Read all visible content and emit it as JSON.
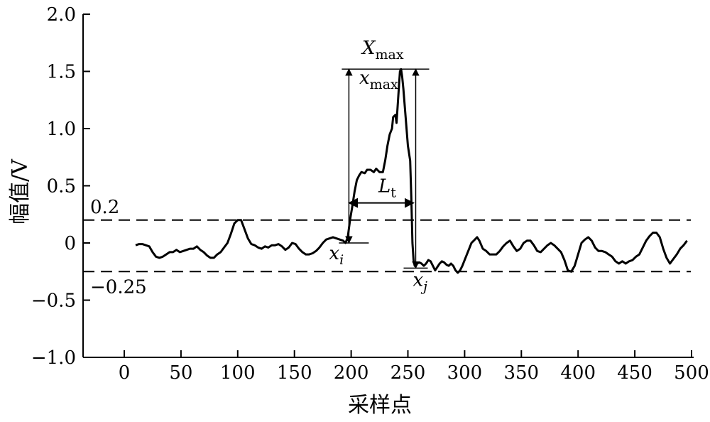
{
  "chart_data": {
    "type": "line",
    "xlabel": "采样点",
    "ylabel": "幅值/V",
    "xlim": [
      -35,
      500
    ],
    "ylim": [
      -1.0,
      2.0
    ],
    "x_ticks": [
      0,
      50,
      100,
      150,
      200,
      250,
      300,
      350,
      400,
      450,
      500
    ],
    "x_tick_labels": [
      "0",
      "50",
      "100",
      "150",
      "200",
      "250",
      "300",
      "350",
      "400",
      "450",
      "500"
    ],
    "y_ticks": [
      2.0,
      1.5,
      1.0,
      0.5,
      0,
      -0.5,
      -1.0
    ],
    "y_tick_labels": [
      "2.0",
      "1.5",
      "1.0",
      "0.5",
      "0",
      "−0.5",
      "−1.0"
    ],
    "thresholds": [
      {
        "value": 0.2,
        "label": "0.2",
        "style": "dashed"
      },
      {
        "value": -0.25,
        "label": "−0.25",
        "style": "dashed"
      }
    ],
    "series": [
      {
        "color": "#000000",
        "points": [
          [
            10,
            -0.02
          ],
          [
            13,
            -0.01
          ],
          [
            16,
            -0.01
          ],
          [
            19,
            -0.02
          ],
          [
            22,
            -0.03
          ],
          [
            25,
            -0.08
          ],
          [
            28,
            -0.12
          ],
          [
            31,
            -0.13
          ],
          [
            34,
            -0.12
          ],
          [
            37,
            -0.1
          ],
          [
            40,
            -0.08
          ],
          [
            43,
            -0.08
          ],
          [
            46,
            -0.06
          ],
          [
            49,
            -0.08
          ],
          [
            52,
            -0.07
          ],
          [
            55,
            -0.06
          ],
          [
            58,
            -0.05
          ],
          [
            61,
            -0.05
          ],
          [
            64,
            -0.03
          ],
          [
            67,
            -0.06
          ],
          [
            70,
            -0.08
          ],
          [
            73,
            -0.11
          ],
          [
            76,
            -0.13
          ],
          [
            79,
            -0.13
          ],
          [
            82,
            -0.1
          ],
          [
            85,
            -0.08
          ],
          [
            88,
            -0.04
          ],
          [
            91,
            0.0
          ],
          [
            94,
            0.08
          ],
          [
            97,
            0.17
          ],
          [
            100,
            0.2
          ],
          [
            103,
            0.2
          ],
          [
            106,
            0.12
          ],
          [
            109,
            0.04
          ],
          [
            112,
            -0.01
          ],
          [
            115,
            -0.02
          ],
          [
            118,
            -0.04
          ],
          [
            121,
            -0.05
          ],
          [
            124,
            -0.03
          ],
          [
            127,
            -0.04
          ],
          [
            130,
            -0.02
          ],
          [
            133,
            -0.02
          ],
          [
            136,
            -0.01
          ],
          [
            139,
            -0.03
          ],
          [
            142,
            -0.06
          ],
          [
            145,
            -0.04
          ],
          [
            148,
            0.0
          ],
          [
            151,
            -0.01
          ],
          [
            154,
            -0.05
          ],
          [
            157,
            -0.08
          ],
          [
            160,
            -0.1
          ],
          [
            163,
            -0.1
          ],
          [
            166,
            -0.09
          ],
          [
            169,
            -0.07
          ],
          [
            172,
            -0.04
          ],
          [
            175,
            0.0
          ],
          [
            178,
            0.03
          ],
          [
            181,
            0.04
          ],
          [
            184,
            0.05
          ],
          [
            187,
            0.04
          ],
          [
            190,
            0.03
          ],
          [
            193,
            0.02
          ],
          [
            195,
            0.0
          ],
          [
            197,
            0.05
          ],
          [
            199,
            0.2
          ],
          [
            201,
            0.32
          ],
          [
            203,
            0.45
          ],
          [
            205,
            0.55
          ],
          [
            207,
            0.59
          ],
          [
            209,
            0.62
          ],
          [
            212,
            0.61
          ],
          [
            214,
            0.64
          ],
          [
            217,
            0.64
          ],
          [
            220,
            0.62
          ],
          [
            222,
            0.65
          ],
          [
            225,
            0.62
          ],
          [
            228,
            0.62
          ],
          [
            230,
            0.72
          ],
          [
            232,
            0.85
          ],
          [
            234,
            0.95
          ],
          [
            236,
            1.0
          ],
          [
            237,
            1.1
          ],
          [
            239,
            1.12
          ],
          [
            240,
            1.05
          ],
          [
            241,
            1.2
          ],
          [
            242,
            1.35
          ],
          [
            243,
            1.5
          ],
          [
            244,
            1.52
          ],
          [
            245,
            1.45
          ],
          [
            246,
            1.35
          ],
          [
            248,
            1.1
          ],
          [
            250,
            0.85
          ],
          [
            252,
            0.72
          ],
          [
            253,
            0.4
          ],
          [
            254,
            0.0
          ],
          [
            255,
            -0.15
          ],
          [
            256,
            -0.2
          ],
          [
            258,
            -0.18
          ],
          [
            260,
            -0.17
          ],
          [
            262,
            -0.18
          ],
          [
            264,
            -0.2
          ],
          [
            266,
            -0.18
          ],
          [
            268,
            -0.15
          ],
          [
            270,
            -0.16
          ],
          [
            272,
            -0.2
          ],
          [
            274,
            -0.24
          ],
          [
            276,
            -0.21
          ],
          [
            278,
            -0.18
          ],
          [
            280,
            -0.16
          ],
          [
            282,
            -0.17
          ],
          [
            284,
            -0.19
          ],
          [
            286,
            -0.2
          ],
          [
            288,
            -0.18
          ],
          [
            290,
            -0.2
          ],
          [
            292,
            -0.24
          ],
          [
            294,
            -0.26
          ],
          [
            296,
            -0.24
          ],
          [
            298,
            -0.2
          ],
          [
            300,
            -0.15
          ],
          [
            302,
            -0.1
          ],
          [
            304,
            -0.05
          ],
          [
            306,
            0.0
          ],
          [
            308,
            0.02
          ],
          [
            311,
            0.05
          ],
          [
            313,
            0.02
          ],
          [
            316,
            -0.05
          ],
          [
            319,
            -0.07
          ],
          [
            322,
            -0.1
          ],
          [
            325,
            -0.1
          ],
          [
            328,
            -0.1
          ],
          [
            331,
            -0.07
          ],
          [
            334,
            -0.03
          ],
          [
            337,
            0.0
          ],
          [
            340,
            0.02
          ],
          [
            343,
            -0.03
          ],
          [
            346,
            -0.07
          ],
          [
            349,
            -0.05
          ],
          [
            352,
            0.0
          ],
          [
            355,
            0.02
          ],
          [
            358,
            0.02
          ],
          [
            361,
            -0.02
          ],
          [
            364,
            -0.07
          ],
          [
            367,
            -0.08
          ],
          [
            370,
            -0.05
          ],
          [
            373,
            -0.02
          ],
          [
            376,
            0.0
          ],
          [
            379,
            -0.02
          ],
          [
            382,
            -0.05
          ],
          [
            385,
            -0.08
          ],
          [
            388,
            -0.15
          ],
          [
            391,
            -0.24
          ],
          [
            394,
            -0.25
          ],
          [
            397,
            -0.2
          ],
          [
            400,
            -0.1
          ],
          [
            403,
            0.0
          ],
          [
            406,
            0.03
          ],
          [
            409,
            0.05
          ],
          [
            412,
            0.02
          ],
          [
            415,
            -0.04
          ],
          [
            418,
            -0.07
          ],
          [
            421,
            -0.07
          ],
          [
            424,
            -0.08
          ],
          [
            427,
            -0.1
          ],
          [
            430,
            -0.12
          ],
          [
            433,
            -0.16
          ],
          [
            436,
            -0.18
          ],
          [
            439,
            -0.16
          ],
          [
            442,
            -0.18
          ],
          [
            445,
            -0.16
          ],
          [
            448,
            -0.15
          ],
          [
            451,
            -0.12
          ],
          [
            454,
            -0.1
          ],
          [
            457,
            -0.04
          ],
          [
            460,
            0.02
          ],
          [
            463,
            0.06
          ],
          [
            466,
            0.09
          ],
          [
            469,
            0.09
          ],
          [
            472,
            0.05
          ],
          [
            475,
            -0.05
          ],
          [
            478,
            -0.13
          ],
          [
            481,
            -0.18
          ],
          [
            484,
            -0.14
          ],
          [
            487,
            -0.1
          ],
          [
            490,
            -0.05
          ],
          [
            493,
            -0.02
          ],
          [
            496,
            0.02
          ]
        ]
      }
    ],
    "annotations": {
      "x_i": {
        "x": 198,
        "y": 0.0,
        "letter": "x",
        "sub": "i"
      },
      "x_j": {
        "x": 255,
        "y": -0.22,
        "letter": "x",
        "sub": "j"
      },
      "X_max": {
        "letter": "X",
        "sub": "max"
      },
      "x_max": {
        "letter": "x",
        "sub": "max"
      },
      "L_t": {
        "x_start": 198,
        "x_end": 255,
        "y": 0.35,
        "letter": "L",
        "sub": "t"
      },
      "peak": {
        "x": 245,
        "y": 1.52
      }
    }
  }
}
